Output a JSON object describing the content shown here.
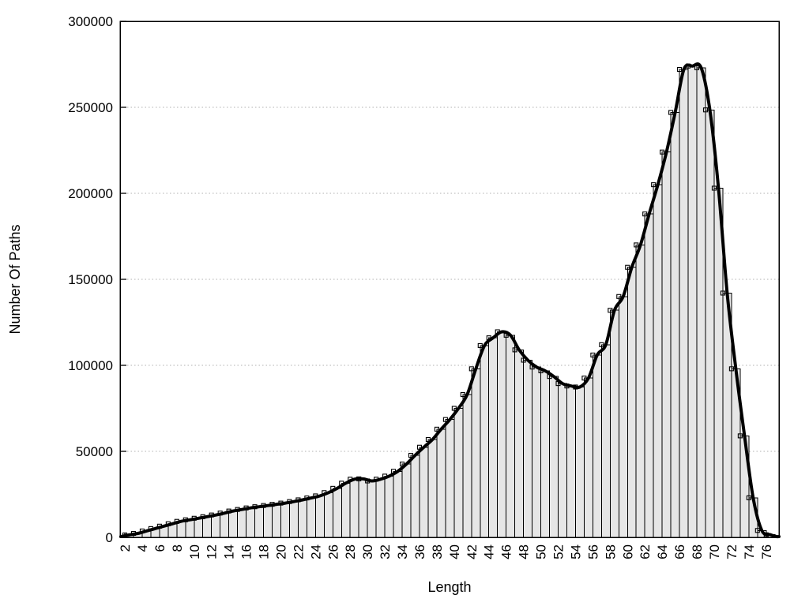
{
  "chart_data": {
    "type": "bar",
    "subtype": "histogram_with_smooth_line",
    "title": "",
    "xlabel": "Length",
    "ylabel": "Number Of Paths",
    "x_bin_start": 2,
    "x_bin_width": 1,
    "lengths": [
      2,
      3,
      4,
      5,
      6,
      7,
      8,
      9,
      10,
      11,
      12,
      13,
      14,
      15,
      16,
      17,
      18,
      19,
      20,
      21,
      22,
      23,
      24,
      25,
      26,
      27,
      28,
      29,
      30,
      31,
      32,
      33,
      34,
      35,
      36,
      37,
      38,
      39,
      40,
      41,
      42,
      43,
      44,
      45,
      46,
      47,
      48,
      49,
      50,
      51,
      52,
      53,
      54,
      55,
      56,
      57,
      58,
      59,
      60,
      61,
      62,
      63,
      64,
      65,
      66,
      67,
      68,
      69,
      70,
      71,
      72,
      73,
      74,
      75,
      76
    ],
    "values": [
      1400,
      2300,
      3700,
      5100,
      6500,
      7900,
      9300,
      10200,
      11100,
      12000,
      13000,
      14100,
      15300,
      16200,
      17100,
      17800,
      18500,
      19200,
      19900,
      20800,
      21800,
      22900,
      24100,
      26000,
      28500,
      31500,
      33800,
      34000,
      32800,
      33800,
      35600,
      38400,
      42600,
      47700,
      52400,
      56900,
      62900,
      68500,
      75000,
      83000,
      98000,
      111500,
      116000,
      119500,
      117500,
      109000,
      103000,
      99000,
      96800,
      93500,
      89400,
      88000,
      87400,
      92600,
      106000,
      112000,
      132000,
      140000,
      157000,
      170000,
      188000,
      205000,
      224000,
      247000,
      272000,
      274000,
      273000,
      248500,
      203000,
      142000,
      98000,
      59000,
      23000,
      4000,
      1500
    ],
    "x_ticks": [
      2,
      4,
      6,
      8,
      10,
      12,
      14,
      16,
      18,
      20,
      22,
      24,
      26,
      28,
      30,
      32,
      34,
      36,
      38,
      40,
      42,
      44,
      46,
      48,
      50,
      52,
      54,
      56,
      58,
      60,
      62,
      64,
      66,
      68,
      70,
      72,
      74,
      76
    ],
    "y_ticks": [
      0,
      50000,
      100000,
      150000,
      200000,
      250000,
      300000
    ],
    "xlim": [
      1.45,
      77.5
    ],
    "ylim": [
      0,
      300000
    ],
    "grid": "horizontal-dotted",
    "legend": "none",
    "colors": {
      "background": "#ffffff",
      "bar_fill": "#e6e6e6",
      "bar_stroke": "#000000",
      "smooth_line": "#000000",
      "grid": "#b0b0b0",
      "border": "#000000",
      "text": "#000000"
    }
  }
}
